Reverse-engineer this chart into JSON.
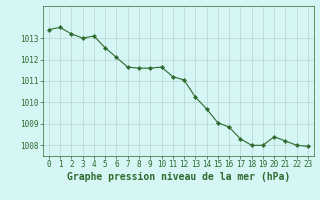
{
  "x": [
    0,
    1,
    2,
    3,
    4,
    5,
    6,
    7,
    8,
    9,
    10,
    11,
    12,
    13,
    14,
    15,
    16,
    17,
    18,
    19,
    20,
    21,
    22,
    23
  ],
  "y": [
    1013.4,
    1013.5,
    1013.2,
    1013.0,
    1013.1,
    1012.55,
    1012.1,
    1011.65,
    1011.6,
    1011.6,
    1011.65,
    1011.2,
    1011.05,
    1010.25,
    1009.7,
    1009.05,
    1008.85,
    1008.3,
    1008.0,
    1008.0,
    1008.4,
    1008.2,
    1008.0,
    1007.95
  ],
  "line_color": "#2d6a2d",
  "marker": "D",
  "marker_size": 2.2,
  "bg_color": "#d6f5f5",
  "grid_color": "#b8d4d4",
  "title": "Graphe pression niveau de la mer (hPa)",
  "ylim_min": 1007.5,
  "ylim_max": 1014.5,
  "xlim_min": -0.5,
  "xlim_max": 23.5,
  "yticks": [
    1008,
    1009,
    1010,
    1011,
    1012,
    1013
  ],
  "xticks": [
    0,
    1,
    2,
    3,
    4,
    5,
    6,
    7,
    8,
    9,
    10,
    11,
    12,
    13,
    14,
    15,
    16,
    17,
    18,
    19,
    20,
    21,
    22,
    23
  ],
  "tick_fontsize": 5.5,
  "title_fontsize": 7.0
}
